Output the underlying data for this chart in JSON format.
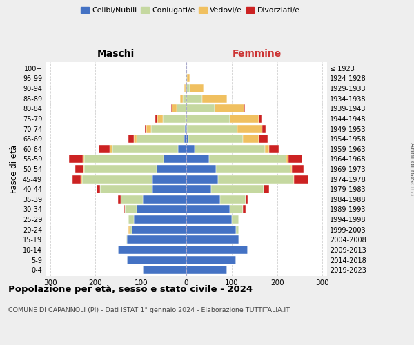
{
  "age_groups": [
    "0-4",
    "5-9",
    "10-14",
    "15-19",
    "20-24",
    "25-29",
    "30-34",
    "35-39",
    "40-44",
    "45-49",
    "50-54",
    "55-59",
    "60-64",
    "65-69",
    "70-74",
    "75-79",
    "80-84",
    "85-89",
    "90-94",
    "95-99",
    "100+"
  ],
  "birth_years": [
    "2019-2023",
    "2014-2018",
    "2009-2013",
    "2004-2008",
    "1999-2003",
    "1994-1998",
    "1989-1993",
    "1984-1988",
    "1979-1983",
    "1974-1978",
    "1969-1973",
    "1964-1968",
    "1959-1963",
    "1954-1958",
    "1949-1953",
    "1944-1948",
    "1939-1943",
    "1934-1938",
    "1929-1933",
    "1924-1928",
    "≤ 1923"
  ],
  "colors": {
    "celibe": "#4472c4",
    "coniugato": "#c5d8a0",
    "vedovo": "#f0c060",
    "divorziato": "#cc2222"
  },
  "male": {
    "celibe": [
      95,
      130,
      150,
      130,
      120,
      115,
      110,
      95,
      75,
      75,
      65,
      50,
      18,
      5,
      3,
      2,
      0,
      0,
      0,
      0,
      0
    ],
    "coniugato": [
      0,
      0,
      0,
      2,
      5,
      12,
      25,
      50,
      115,
      155,
      160,
      175,
      145,
      105,
      75,
      50,
      22,
      8,
      2,
      0,
      0
    ],
    "vedovo": [
      0,
      0,
      0,
      0,
      3,
      0,
      0,
      0,
      0,
      2,
      2,
      3,
      5,
      5,
      10,
      12,
      10,
      5,
      2,
      0,
      0
    ],
    "divorziato": [
      0,
      0,
      0,
      0,
      0,
      2,
      2,
      5,
      8,
      18,
      18,
      30,
      25,
      12,
      3,
      5,
      2,
      0,
      0,
      0,
      0
    ]
  },
  "female": {
    "nubile": [
      90,
      110,
      135,
      115,
      110,
      100,
      95,
      75,
      55,
      70,
      65,
      50,
      18,
      5,
      2,
      0,
      0,
      0,
      0,
      0,
      0
    ],
    "coniugata": [
      0,
      0,
      0,
      2,
      5,
      15,
      30,
      55,
      115,
      165,
      165,
      170,
      155,
      120,
      110,
      95,
      62,
      35,
      8,
      2,
      0
    ],
    "vedova": [
      0,
      0,
      0,
      0,
      0,
      0,
      0,
      0,
      0,
      2,
      3,
      5,
      10,
      35,
      55,
      65,
      65,
      55,
      30,
      5,
      0
    ],
    "divorziata": [
      0,
      0,
      0,
      0,
      0,
      2,
      5,
      5,
      12,
      32,
      25,
      30,
      20,
      20,
      8,
      5,
      2,
      0,
      0,
      0,
      0
    ]
  },
  "xlim": 310,
  "title": "Popolazione per età, sesso e stato civile - 2024",
  "subtitle": "COMUNE DI CAPANNOLI (PI) - Dati ISTAT 1° gennaio 2024 - Elaborazione TUTTITALIA.IT",
  "ylabel": "Fasce di età",
  "ylabel_right": "Anni di nascita",
  "xlabel_left": "Maschi",
  "xlabel_right": "Femmine",
  "bg_color": "#eeeeee",
  "plot_bg": "#ffffff",
  "grid_color": "#cccccc",
  "legend_labels": [
    "Celibi/Nubili",
    "Coniugati/e",
    "Vedovi/e",
    "Divorziati/e"
  ]
}
